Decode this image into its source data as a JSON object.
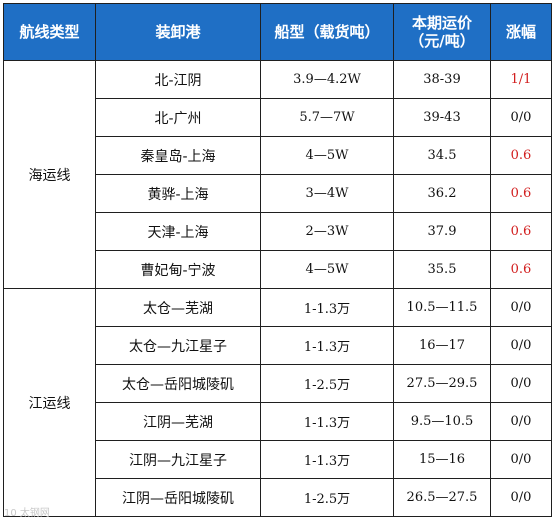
{
  "headers": {
    "route_type": "航线类型",
    "port": "装卸港",
    "ship_type": "船型（载货吨）",
    "freight_line1": "本期运价",
    "freight_line2": "（元/吨）",
    "change": "涨幅"
  },
  "groups": [
    {
      "category": "海运线",
      "rows": [
        {
          "port": "北-江阴",
          "ship": "3.9—4.2W",
          "freight": "38-39",
          "change": "1/1",
          "up": true
        },
        {
          "port": "北-广州",
          "ship": "5.7—7W",
          "freight": "39-43",
          "change": "0/0",
          "up": false
        },
        {
          "port": "秦皇岛-上海",
          "ship": "4—5W",
          "freight": "34.5",
          "change": "0.6",
          "up": true
        },
        {
          "port": "黄骅-上海",
          "ship": "3—4W",
          "freight": "36.2",
          "change": "0.6",
          "up": true
        },
        {
          "port": "天津-上海",
          "ship": "2—3W",
          "freight": "37.9",
          "change": "0.6",
          "up": true
        },
        {
          "port": "曹妃甸-宁波",
          "ship": "4—5W",
          "freight": "35.5",
          "change": "0.6",
          "up": true
        }
      ]
    },
    {
      "category": "江运线",
      "rows": [
        {
          "port": "太仓—芜湖",
          "ship": "1-1.3万",
          "freight": "10.5—11.5",
          "change": "0/0",
          "up": false
        },
        {
          "port": "太仓—九江星子",
          "ship": "1-1.3万",
          "freight": "16—17",
          "change": "0/0",
          "up": false
        },
        {
          "port": "太仓—岳阳城陵矶",
          "ship": "1-2.5万",
          "freight": "27.5—29.5",
          "change": "0/0",
          "up": false
        },
        {
          "port": "江阴—芜湖",
          "ship": "1-1.3万",
          "freight": "9.5—10.5",
          "change": "0/0",
          "up": false
        },
        {
          "port": "江阴—九江星子",
          "ship": "1-1.3万",
          "freight": "15—16",
          "change": "0/0",
          "up": false
        },
        {
          "port": "江阴—岳阳城陵矶",
          "ship": "1-2.5万",
          "freight": "26.5—27.5",
          "change": "0/0",
          "up": false
        }
      ]
    }
  ],
  "watermark": "10 太钢网",
  "colors": {
    "header_bg": "#1f6fc5",
    "increase": "#d21f1f"
  }
}
